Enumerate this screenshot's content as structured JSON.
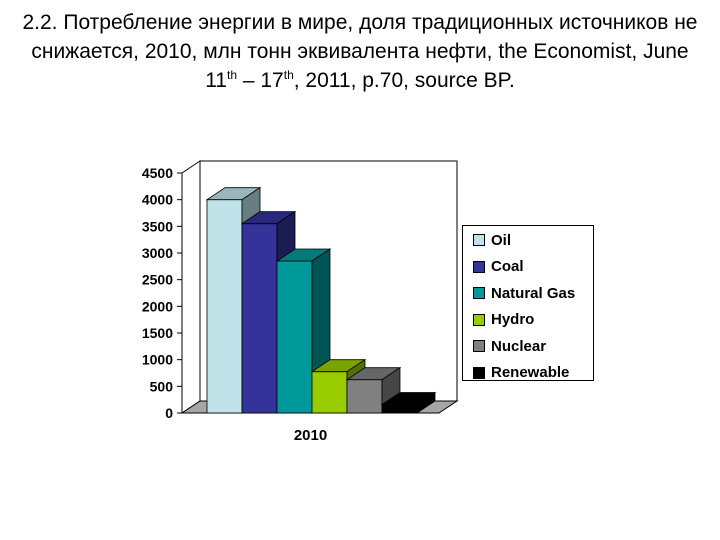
{
  "slide": {
    "title_part1": "2.2. Потребление энергии в мире, доля традиционных источников не снижается, 2010, млн тонн эквивалента нефти, the Economist, June 11",
    "title_sup1": "th",
    "title_part2": " – 17",
    "title_sup2": "th",
    "title_part3": ", 2011, p.70, source BP."
  },
  "chart_data": {
    "type": "bar",
    "categories": [
      "2010"
    ],
    "series": [
      {
        "name": "Oil",
        "values": [
          4000
        ],
        "color": "#bfe3e8"
      },
      {
        "name": "Coal",
        "values": [
          3550
        ],
        "color": "#33339a"
      },
      {
        "name": "Natural Gas",
        "values": [
          2850
        ],
        "color": "#009999"
      },
      {
        "name": "Hydro",
        "values": [
          775
        ],
        "color": "#99cc00"
      },
      {
        "name": "Nuclear",
        "values": [
          625
        ],
        "color": "#808080"
      },
      {
        "name": "Renewable",
        "values": [
          160
        ],
        "color": "#000000"
      }
    ],
    "yticks": [
      0,
      500,
      1000,
      1500,
      2000,
      2500,
      3000,
      3500,
      4000,
      4500
    ],
    "ylim": [
      0,
      4500
    ],
    "grid": false,
    "legend_position": "right",
    "style": "3d-clustered-column"
  }
}
